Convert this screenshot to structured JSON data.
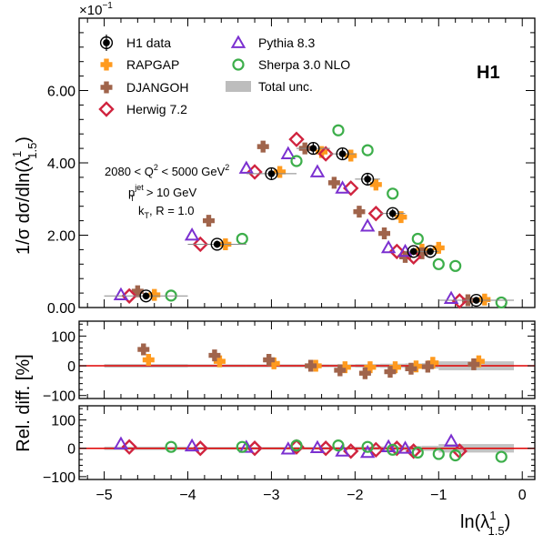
{
  "chart_data": {
    "type": "scatter",
    "experiment_label": "H1",
    "exponent_label": "×10",
    "exponent_power": "−1",
    "xlabel": {
      "base": "ln(λ",
      "sup": "1",
      "sub": "1.5",
      "close": ")"
    },
    "ylabel": {
      "prefix": "1/σ dσ/dln(λ",
      "sup": "1",
      "sub": "1.5",
      "close": ")"
    },
    "ratio_ylabel": "Rel. diff. [%]",
    "xlim": [
      -5.3,
      0.15
    ],
    "ylim": [
      0,
      0.8
    ],
    "ratio_ylim": [
      -110,
      150
    ],
    "x_ticks": [
      -5,
      -4,
      -3,
      -2,
      -1,
      0
    ],
    "x_tick_labels": [
      "−5",
      "−4",
      "−3",
      "−2",
      "−1",
      "0"
    ],
    "y_ticks": [
      0.0,
      0.2,
      0.4,
      0.6
    ],
    "y_tick_labels": [
      "0.00",
      "2.00",
      "4.00",
      "6.00"
    ],
    "ratio_ticks": [
      -100,
      0,
      100
    ],
    "ratio_tick_labels": [
      "−100",
      "0",
      "100"
    ],
    "annotation": {
      "line1": "2080 < Q",
      "line1_sup": "2",
      "line1_rest": " < 5000 GeV",
      "line1_sup2": "2",
      "line2_p": "p",
      "line2_sup": "jet",
      "line2_sub": "T",
      "line2_rest": " > 10 GeV",
      "line3": "k",
      "line3_sub": "T",
      "line3_rest": ", R = 1.0"
    },
    "legend_placement": "top-left",
    "bins": [
      -5.0,
      -4.0,
      -3.3,
      -2.7,
      -2.3,
      -2.0,
      -1.7,
      -1.4,
      -1.2,
      -1.0,
      -0.1
    ],
    "centers": [
      -4.5,
      -3.65,
      -3.0,
      -2.5,
      -2.15,
      -1.85,
      -1.55,
      -1.3,
      -1.1,
      -0.55
    ],
    "h1_data": [
      0.032,
      0.175,
      0.37,
      0.44,
      0.425,
      0.355,
      0.26,
      0.155,
      0.155,
      0.02
    ],
    "h1_errors": [
      0.005,
      0.01,
      0.015,
      0.015,
      0.015,
      0.015,
      0.012,
      0.01,
      0.01,
      0.004
    ],
    "total_unc_pct": [
      6,
      5,
      5,
      5,
      5,
      6,
      7,
      8,
      9,
      15
    ],
    "series": [
      {
        "name": "H1 data",
        "legend_text": "H1 data",
        "marker": "circle-filled",
        "color": "#000000"
      },
      {
        "name": "RAPGAP",
        "legend_text": "RAPGAP",
        "marker": "cross",
        "color": "#ff9a1e",
        "offset": 0.1,
        "ratio": [
          20,
          15,
          8,
          0,
          -5,
          -5,
          -5,
          -2,
          10,
          15
        ]
      },
      {
        "name": "DJANGOH",
        "legend_text": "DJANGOH",
        "marker": "cross",
        "color": "#a0644b",
        "offset": -0.1,
        "ratio": [
          55,
          35,
          20,
          0,
          -15,
          -25,
          -20,
          -10,
          -3,
          5
        ]
      },
      {
        "name": "Herwig 7.2",
        "legend_text": "Herwig 7.2",
        "marker": "diamond-open",
        "color": "#d0243f",
        "offset": -0.2,
        "ratio": [
          5,
          0,
          0,
          5,
          0,
          -10,
          -5,
          0,
          -10,
          -10
        ]
      },
      {
        "name": "Pythia 8.3",
        "legend_text": "Pythia 8.3",
        "marker": "triangle-open",
        "color": "#7b30d0",
        "offset": -0.3,
        "ratio": [
          15,
          8,
          3,
          -3,
          2,
          -10,
          -15,
          5,
          0,
          25
        ]
      },
      {
        "name": "Sherpa 3.0 NLO",
        "legend_text": "Sherpa 3.0 NLO",
        "marker": "circle-open",
        "color": "#3cae4a",
        "offset": 0.3,
        "ratio": [
          5,
          5,
          10,
          10,
          5,
          -5,
          -15,
          -20,
          -25,
          -30
        ]
      }
    ],
    "predictions": {
      "RAPGAP": [
        0.035,
        0.175,
        0.375,
        0.43,
        0.42,
        0.34,
        0.25,
        0.16,
        0.165,
        0.022
      ],
      "DJANGOH": [
        0.045,
        0.24,
        0.445,
        0.44,
        0.345,
        0.265,
        0.205,
        0.14,
        0.15,
        0.02
      ],
      "Herwig 7.2": [
        0.032,
        0.175,
        0.375,
        0.465,
        0.425,
        0.33,
        0.26,
        0.155,
        0.14,
        0.018
      ],
      "Pythia 8.3": [
        0.035,
        0.2,
        0.385,
        0.425,
        0.375,
        0.33,
        0.225,
        0.165,
        0.155,
        0.025
      ],
      "Sherpa 3.0 NLO": [
        0.033,
        0.19,
        0.405,
        0.49,
        0.435,
        0.315,
        0.19,
        0.12,
        0.115,
        0.014
      ]
    },
    "legend_total_unc": "Total unc.",
    "grid": false
  }
}
